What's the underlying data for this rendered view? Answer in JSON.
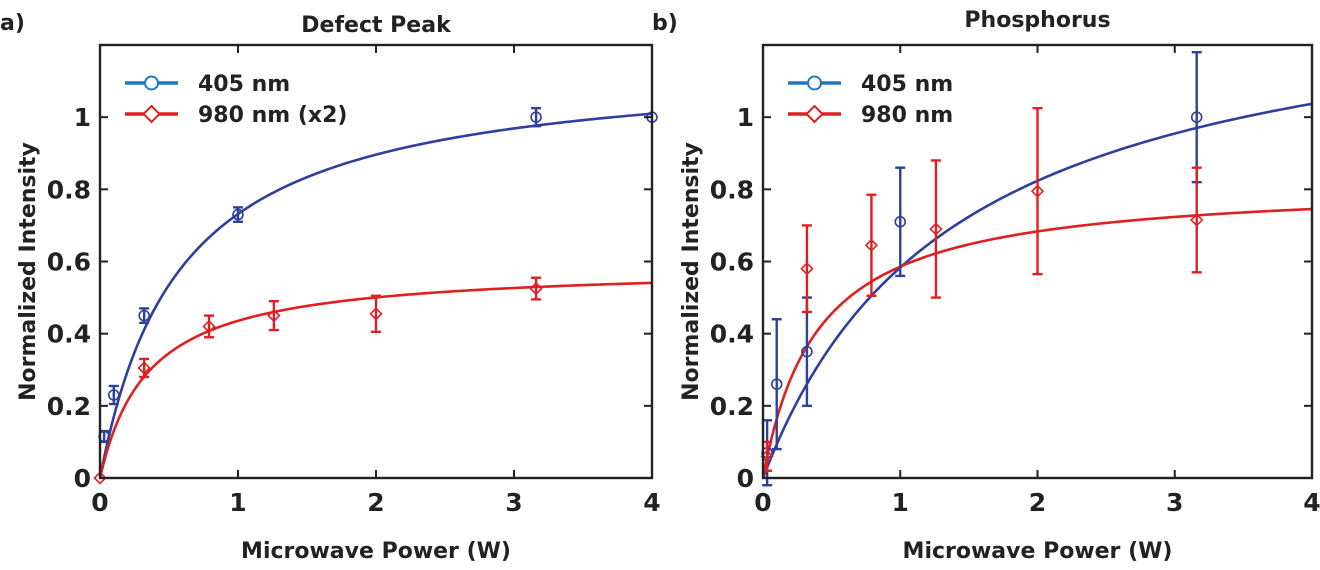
{
  "chart_data": [
    {
      "panel_label": "a)",
      "type": "scatter",
      "title": "Defect Peak",
      "xlabel": "Microwave Power (W)",
      "ylabel": "Normalized Intensity",
      "xlim": [
        0,
        4
      ],
      "ylim": [
        0,
        1.2
      ],
      "xticks": [
        0,
        1,
        2,
        3,
        4
      ],
      "xtick_labels": [
        "0",
        "1",
        "2",
        "3",
        "4"
      ],
      "yticks": [
        0,
        0.2,
        0.4,
        0.6,
        0.8,
        1
      ],
      "ytick_labels": [
        "0",
        "0.2",
        "0.4",
        "0.6",
        "0.8",
        "1"
      ],
      "legend_position": "top-left",
      "series": [
        {
          "name": "405 nm",
          "color": "#2e3f9e",
          "legend_color": "#1f77c8",
          "marker": "circle",
          "x": [
            0.03,
            0.1,
            0.32,
            1.0,
            3.16,
            4.0
          ],
          "y": [
            0.115,
            0.23,
            0.45,
            0.73,
            1.0,
            1.0
          ],
          "err": [
            0.015,
            0.025,
            0.02,
            0.02,
            0.025,
            0.0
          ],
          "fit": {
            "model": "saturation",
            "A": 1.156,
            "P0": 0.58
          }
        },
        {
          "name": "980 nm (x2)",
          "color": "#e02020",
          "legend_color": "#e02020",
          "marker": "diamond",
          "x": [
            0.0,
            0.32,
            0.79,
            1.26,
            2.0,
            3.16
          ],
          "y": [
            0.0,
            0.305,
            0.42,
            0.45,
            0.455,
            0.525
          ],
          "err": [
            0.0,
            0.025,
            0.03,
            0.04,
            0.05,
            0.03
          ],
          "fit": {
            "model": "saturation",
            "A": 0.588,
            "P0": 0.35
          }
        }
      ]
    },
    {
      "panel_label": "b)",
      "type": "scatter",
      "title": "Phosphorus",
      "xlabel": "Microwave Power (W)",
      "ylabel": "Normalized Intensity",
      "xlim": [
        0,
        4
      ],
      "ylim": [
        0,
        1.2
      ],
      "xticks": [
        0,
        1,
        2,
        3,
        4
      ],
      "xtick_labels": [
        "0",
        "1",
        "2",
        "3",
        "4"
      ],
      "yticks": [
        0,
        0.2,
        0.4,
        0.6,
        0.8,
        1
      ],
      "ytick_labels": [
        "0",
        "0.2",
        "0.4",
        "0.6",
        "0.8",
        "1"
      ],
      "legend_position": "top-left",
      "series": [
        {
          "name": "405 nm",
          "color": "#2e3f9e",
          "legend_color": "#1f77c8",
          "marker": "circle",
          "x": [
            0.03,
            0.1,
            0.32,
            1.0,
            3.16
          ],
          "y": [
            0.07,
            0.26,
            0.35,
            0.71,
            1.0
          ],
          "err": [
            0.09,
            0.18,
            0.15,
            0.15,
            0.18
          ],
          "fit": {
            "model": "saturation",
            "A": 1.4,
            "P0": 1.4
          }
        },
        {
          "name": "980 nm",
          "color": "#e02020",
          "legend_color": "#e02020",
          "marker": "diamond",
          "x": [
            0.03,
            0.32,
            0.79,
            1.26,
            2.0,
            3.16
          ],
          "y": [
            0.06,
            0.58,
            0.645,
            0.69,
            0.795,
            0.715
          ],
          "err": [
            0.04,
            0.12,
            0.14,
            0.19,
            0.23,
            0.145
          ],
          "fit": {
            "model": "saturation",
            "A": 0.82,
            "P0": 0.4
          }
        }
      ]
    }
  ]
}
